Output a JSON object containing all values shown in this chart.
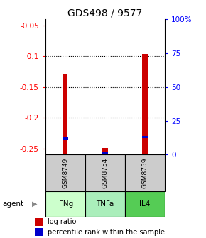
{
  "title": "GDS498 / 9577",
  "samples": [
    "GSM8749",
    "GSM8754",
    "GSM8759"
  ],
  "agents": [
    "IFNg",
    "TNFa",
    "IL4"
  ],
  "log_ratios": [
    -0.13,
    -0.249,
    -0.096
  ],
  "percentile_ranks_pct": [
    12,
    1,
    13
  ],
  "ylim_left": [
    -0.26,
    -0.04
  ],
  "ylim_right": [
    0,
    100
  ],
  "yticks_left": [
    -0.25,
    -0.2,
    -0.15,
    -0.1,
    -0.05
  ],
  "yticks_right": [
    0,
    25,
    50,
    75,
    100
  ],
  "ytick_labels_right": [
    "0",
    "25",
    "50",
    "75",
    "100%"
  ],
  "bar_color_red": "#cc0000",
  "bar_color_blue": "#0000cc",
  "agent_colors": [
    "#ccffcc",
    "#aaeebb",
    "#55cc55"
  ],
  "sample_bg_color": "#cccccc",
  "title_fontsize": 10,
  "tick_fontsize": 7.5,
  "legend_fontsize": 7,
  "bar_width": 0.13
}
